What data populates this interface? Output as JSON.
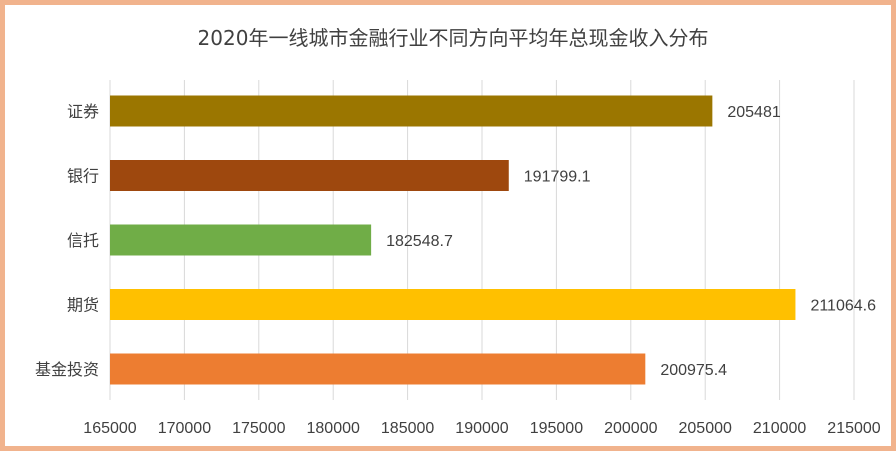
{
  "chart_data": {
    "type": "bar",
    "orientation": "horizontal",
    "title": "2020年一线城市金融行业不同方向平均年总现金收入分布",
    "categories": [
      "证券",
      "银行",
      "信托",
      "期货",
      "基金投资"
    ],
    "values": [
      205481,
      191799.1,
      182548.7,
      211064.6,
      200975.4
    ],
    "value_labels": [
      "205481",
      "191799.1",
      "182548.7",
      "211064.6",
      "200975.4"
    ],
    "colors": [
      "#9b7600",
      "#9e480e",
      "#70ad47",
      "#ffc000",
      "#ed7d31"
    ],
    "xlim": [
      165000,
      215000
    ],
    "x_ticks": [
      165000,
      170000,
      175000,
      180000,
      185000,
      190000,
      195000,
      200000,
      205000,
      210000,
      215000
    ],
    "x_tick_labels": [
      "165000",
      "170000",
      "175000",
      "180000",
      "185000",
      "190000",
      "195000",
      "200000",
      "205000",
      "210000",
      "215000"
    ],
    "xlabel": "",
    "ylabel": "",
    "grid": "vertical",
    "legend": "none"
  },
  "frame_color": "#f1b38d"
}
